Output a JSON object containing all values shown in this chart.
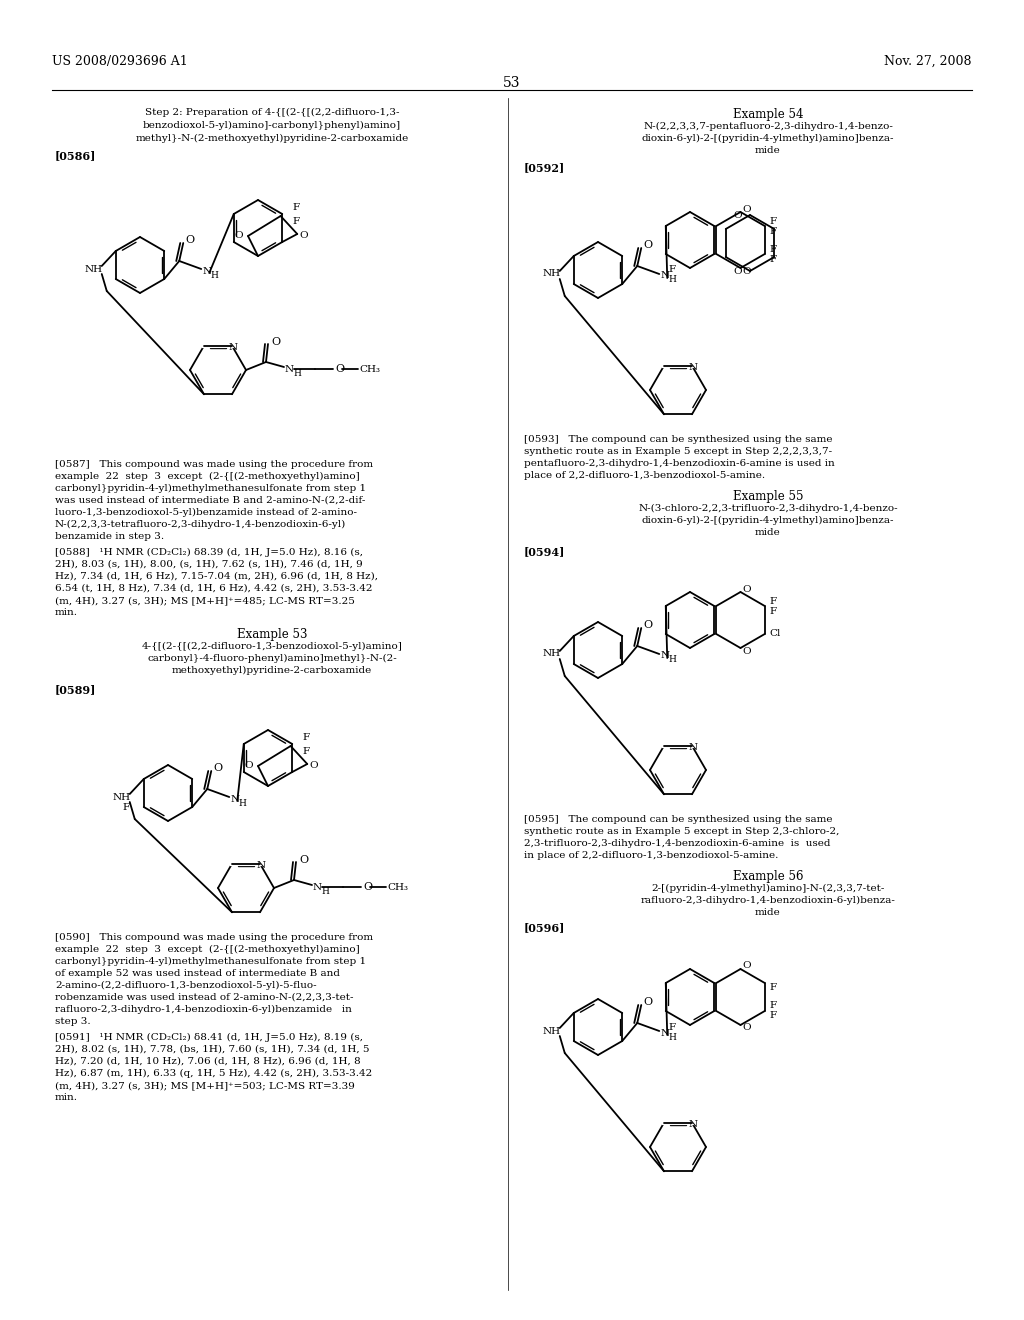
{
  "page_number": "53",
  "header_left": "US 2008/0293696 A1",
  "header_right": "Nov. 27, 2008",
  "bg": "#ffffff"
}
